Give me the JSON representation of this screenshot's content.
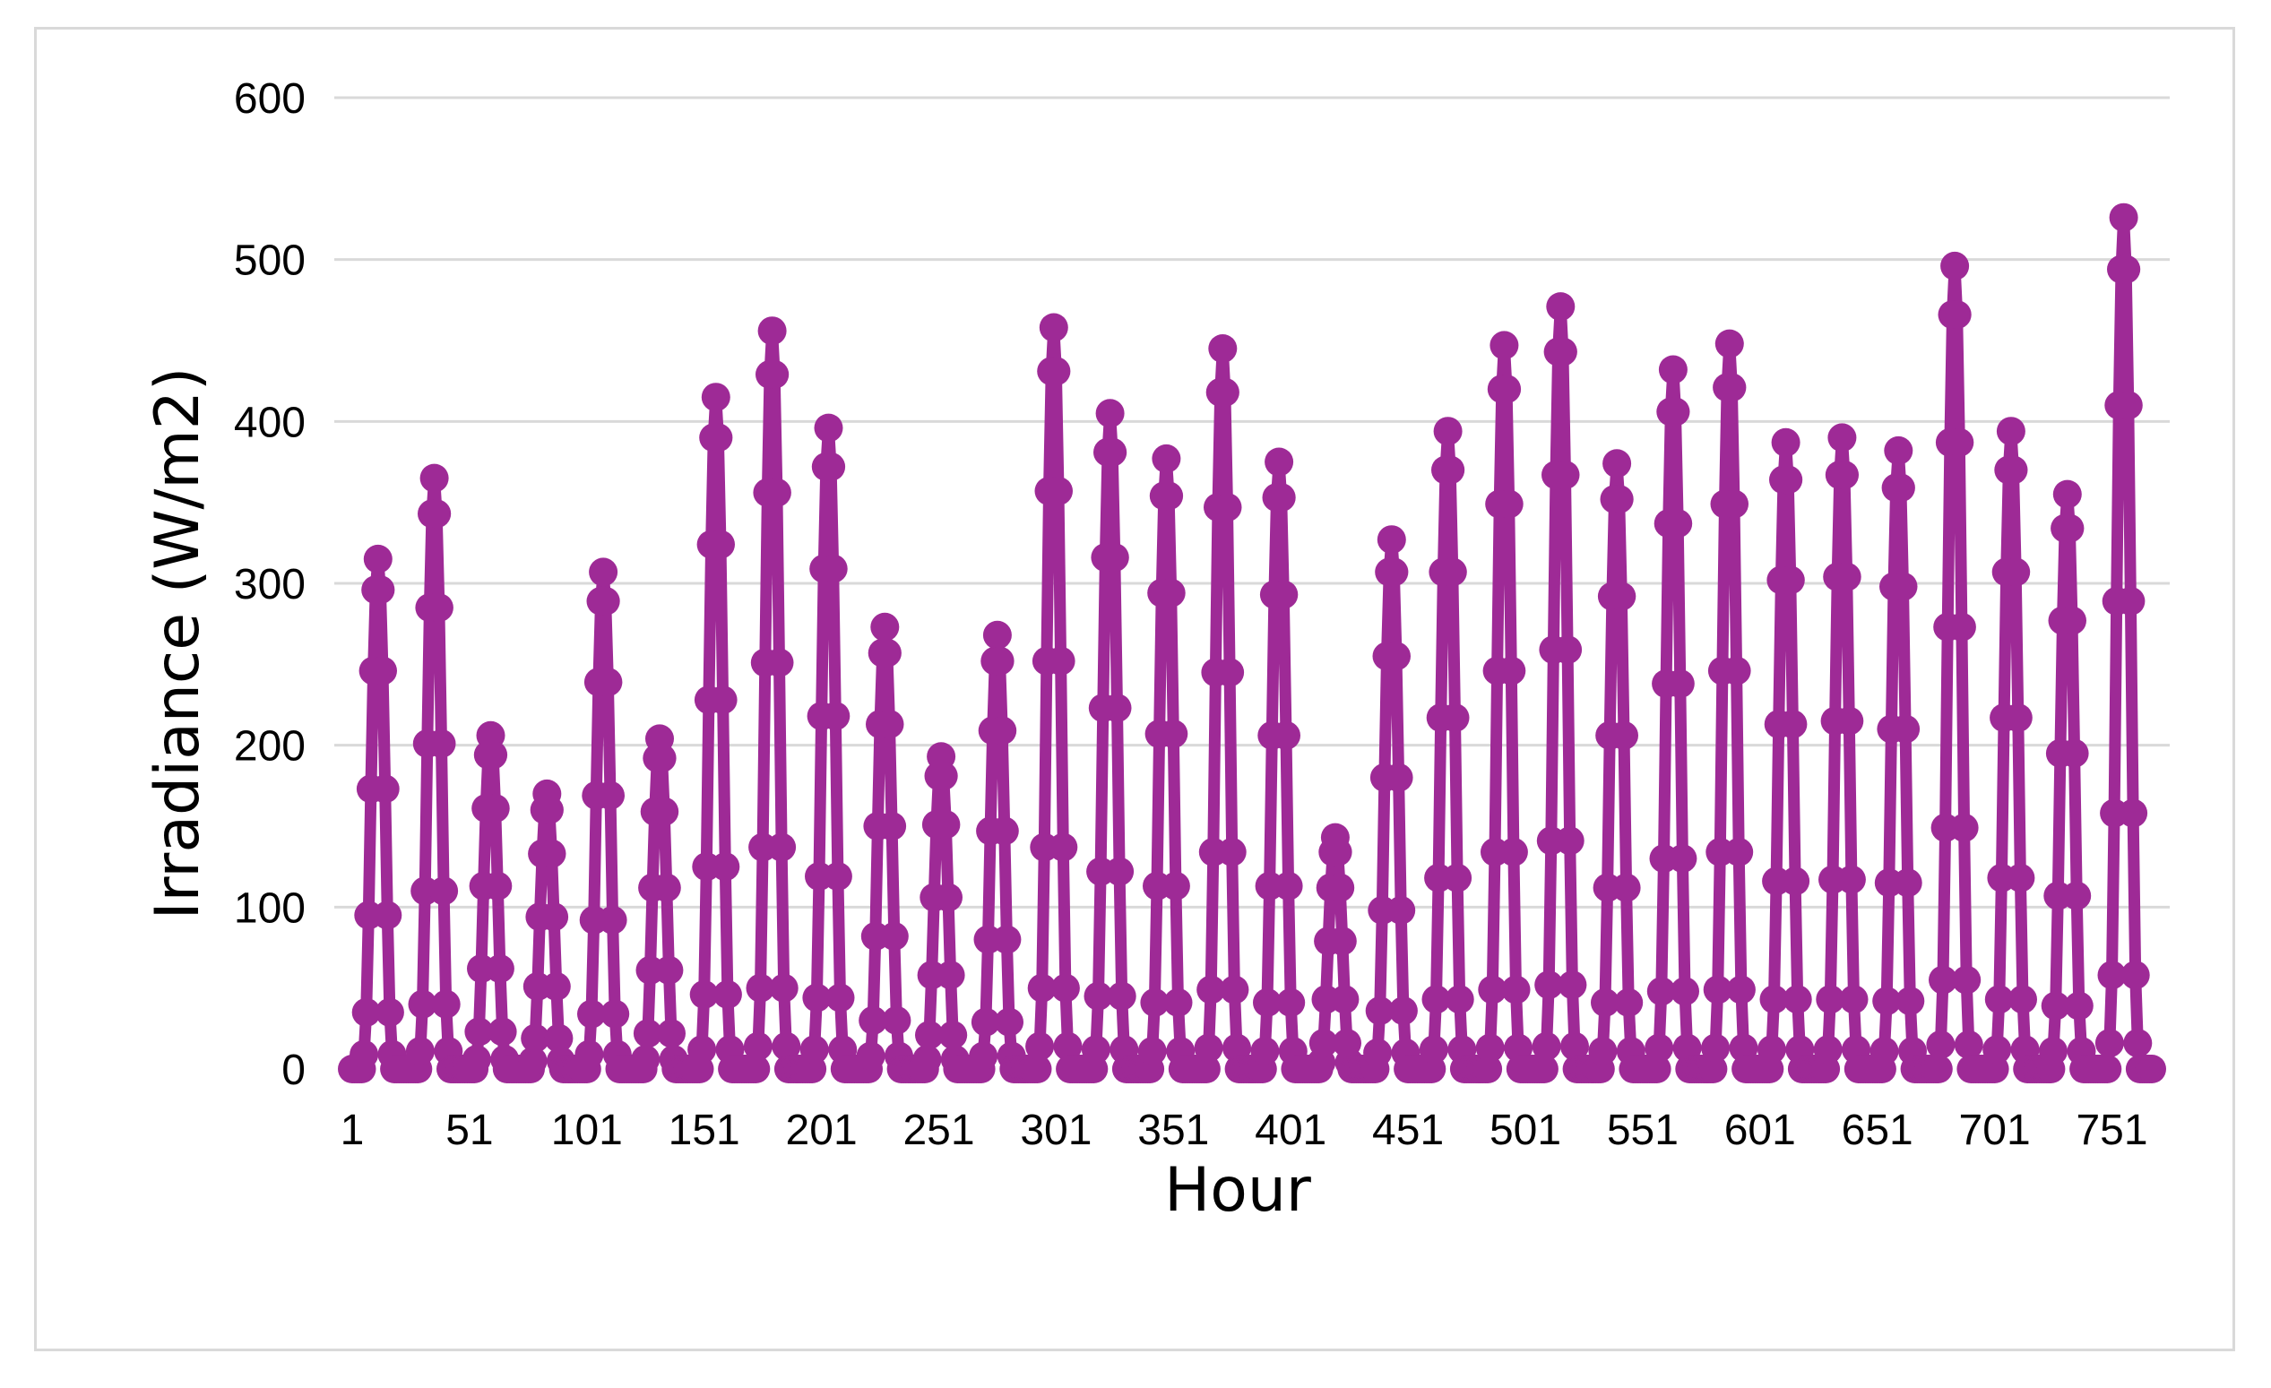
{
  "chart_data": {
    "type": "line",
    "title": "",
    "xlabel": "Hour",
    "ylabel": "Irradiance (W/m2)",
    "ylim": [
      0,
      600
    ],
    "yticks": [
      0,
      100,
      200,
      300,
      400,
      500,
      600
    ],
    "xlim": [
      1,
      768
    ],
    "xticks": [
      1,
      51,
      101,
      151,
      201,
      251,
      301,
      351,
      401,
      451,
      501,
      551,
      601,
      651,
      701,
      751
    ],
    "grid": "horizontal",
    "legend": "none",
    "markers": true,
    "series": [
      {
        "color": "#9e2a96",
        "daily_peak_hours": [
          12,
          36,
          60,
          84,
          108,
          132,
          156,
          180,
          204,
          228,
          252,
          276,
          300,
          324,
          348,
          372,
          396,
          420,
          444,
          468,
          492,
          516,
          540,
          564,
          588,
          612,
          636,
          660,
          684,
          708,
          732,
          756
        ],
        "daily_peaks_w_m2": [
          315,
          365,
          206,
          170,
          307,
          204,
          415,
          456,
          396,
          273,
          193,
          268,
          458,
          405,
          377,
          445,
          375,
          143,
          327,
          394,
          447,
          471,
          374,
          432,
          448,
          387,
          390,
          382,
          496,
          394,
          355,
          526
        ],
        "night_value_w_m2": 0
      }
    ]
  }
}
